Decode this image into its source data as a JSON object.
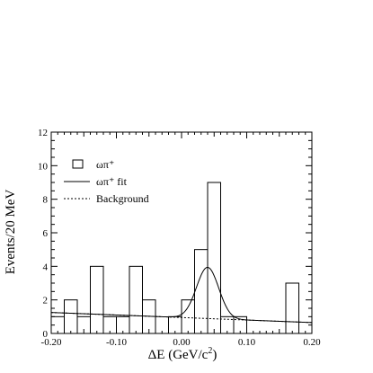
{
  "chart_data": {
    "type": "histogram",
    "title": "",
    "xlabel_main": "ΔE (GeV/c",
    "xlabel_sup": "2",
    "xlabel_close": ")",
    "ylabel": "Events/20 MeV",
    "xlim": [
      -0.2,
      0.2
    ],
    "ylim": [
      0,
      12
    ],
    "x_ticks": [
      -0.2,
      -0.1,
      0.0,
      0.1,
      0.2
    ],
    "x_tick_labels": [
      "-0.20",
      "-0.10",
      "0.00",
      "0.10",
      "0.20"
    ],
    "y_ticks": [
      0,
      2,
      4,
      6,
      8,
      10,
      12
    ],
    "y_tick_labels": [
      "0",
      "2",
      "4",
      "6",
      "8",
      "10",
      "12"
    ],
    "grid": false,
    "legend_position": "top-left",
    "histogram": {
      "name": "ωπ⁺",
      "bin_edges": [
        -0.2,
        -0.18,
        -0.16,
        -0.14,
        -0.12,
        -0.1,
        -0.08,
        -0.06,
        -0.04,
        -0.02,
        0.0,
        0.02,
        0.04,
        0.06,
        0.08,
        0.1,
        0.12,
        0.14,
        0.16,
        0.18,
        0.2
      ],
      "counts": [
        1,
        2,
        1,
        4,
        1,
        1,
        4,
        2,
        0,
        1,
        2,
        5,
        9,
        1,
        1,
        0,
        0,
        0,
        3,
        0
      ]
    },
    "fit": {
      "name": "ωπ⁺ fit",
      "mean": 0.04,
      "sigma": 0.017,
      "amplitude": 3.05
    },
    "background": {
      "name": "Background",
      "x": [
        -0.2,
        0.2
      ],
      "y": [
        1.25,
        0.65
      ]
    }
  },
  "legend": {
    "hist_label": "ωπ⁺",
    "fit_label": "ωπ⁺ fit",
    "bg_label": "Background"
  }
}
